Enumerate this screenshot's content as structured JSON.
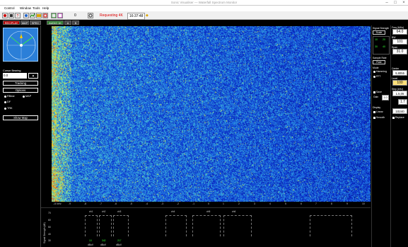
{
  "window": {
    "title": "Sonic Visualiser — Waterfall Spectrum Monitor"
  },
  "menu": [
    "Control",
    "Window",
    "Tools",
    "Help"
  ],
  "toolbar": {
    "field_value": "0",
    "status_text": "Requesting 4K",
    "time_value": "16:37:48"
  },
  "tabs": [
    {
      "label": "REC/PLAY",
      "color": "#b00000"
    },
    {
      "label": "MAP",
      "color": "#444444"
    },
    {
      "label": "SPEC",
      "color": "#444444"
    },
    {
      "label": "AUDIO 1K",
      "color": "#2d7a2d"
    },
    {
      "label": "A",
      "color": "#444444"
    },
    {
      "label": "B",
      "color": "#444444"
    }
  ],
  "left": {
    "cursor_label": "Cursor Bearing",
    "cursor_value": "0.0",
    "tracking_button": "Tracking",
    "options_button": "Options",
    "radios": [
      "RBear",
      "MAP",
      "DF",
      "TRK"
    ],
    "show_map_button": "Show Map"
  },
  "freq_axis": [
    "-10 kHz",
    "-9",
    "-8",
    "-7",
    "-6",
    "-5",
    "-4",
    "-3",
    "-2",
    "-1",
    "0",
    "1",
    "2",
    "3",
    "4",
    "5",
    "6",
    "7",
    "8",
    "9",
    "10"
  ],
  "bottom": {
    "side_label": "Signal Strength (dB)",
    "scale": [
      "70",
      "60",
      "50",
      "40",
      "30"
    ],
    "channels": [
      {
        "top": "ch1",
        "val": "10",
        "unit": "dBuV"
      },
      {
        "top": "ch2",
        "val": "342",
        "unit": "dBuV"
      },
      {
        "top": "ch3",
        "val": "217",
        "unit": "dBuV"
      },
      {
        "top": "ch4",
        "val": "",
        "unit": ""
      },
      {
        "top": "ch5",
        "val": "",
        "unit": ""
      },
      {
        "top": "ch6",
        "val": "",
        "unit": ""
      }
    ]
  },
  "right1": {
    "header1": "Signal Strength",
    "button1": "Scale",
    "greens": [
      "10",
      "20",
      "30",
      "40"
    ],
    "label2": "Sample Rate",
    "button2": "Rate",
    "label3": "Mode",
    "radios": [
      "Hamming",
      "FFT"
    ],
    "check1": "Save",
    "label4": "Gain",
    "val_small": "1.0",
    "label5": "Display",
    "checks": [
      "Linear",
      "Smooth"
    ]
  },
  "right2": {
    "label_a": "Freq (MHz)",
    "val_a": "64.0",
    "label_b": "BW",
    "val_b": "101",
    "label_c": "Span",
    "val_c": "31.0",
    "label_d": "Center",
    "val_d": "9,8055",
    "label_e": "Level",
    "val_e": "100",
    "label_f": "Step (kHz)",
    "val_f": "1.5,05",
    "val_g": "1.7",
    "val_h": "10240",
    "check": "Replace"
  }
}
